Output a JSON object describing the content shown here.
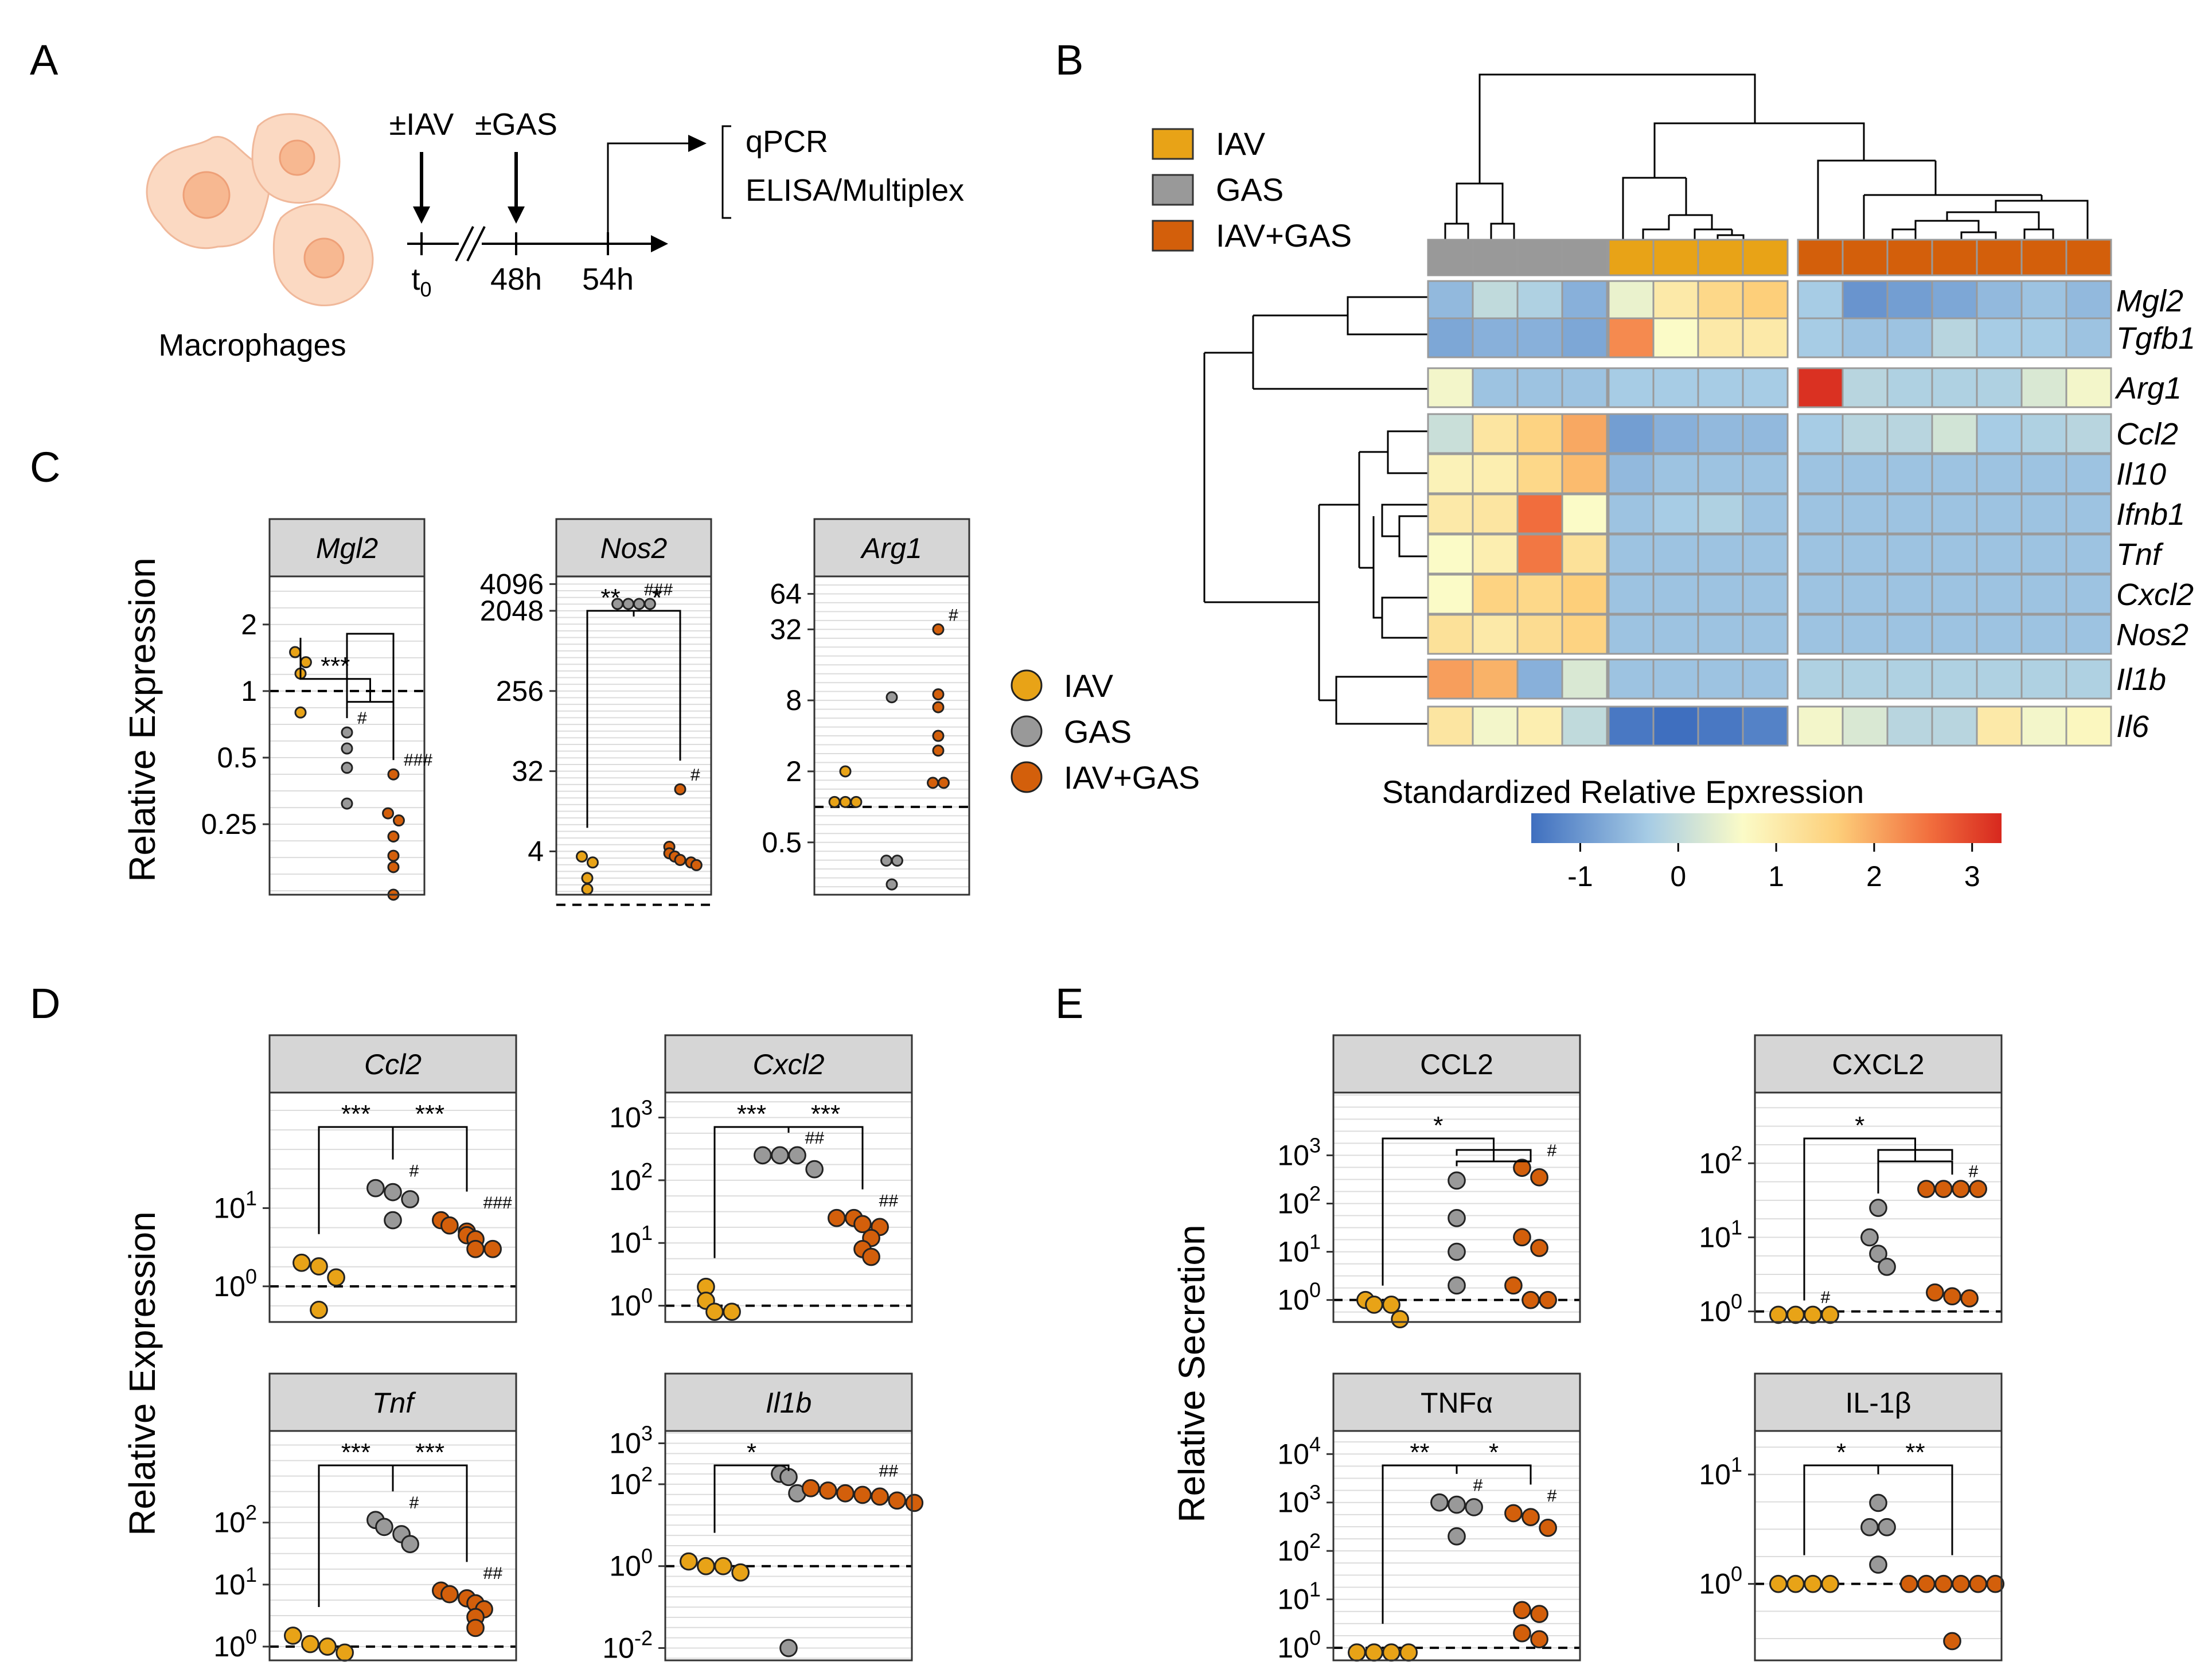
{
  "colors": {
    "IAV": "#E8A317",
    "GAS": "#999999",
    "IAV+GAS": "#D35F0B"
  },
  "legend": {
    "items": [
      "IAV",
      "GAS",
      "IAV+GAS"
    ]
  },
  "panel_A": {
    "label": "A",
    "cell_label": "Macrophages",
    "step1": "±IAV",
    "step2": "±GAS",
    "t0": "t",
    "t0_sub": "0",
    "t48": "48h",
    "t54": "54h",
    "readout1": "qPCR",
    "readout2": "ELISA/Multiplex"
  },
  "panel_B": {
    "label": "B",
    "colorbar_title": "Standardized Relative Epxression",
    "colorbar_ticks": [
      "-1",
      "0",
      "1",
      "2",
      "3"
    ],
    "genes": [
      "Mgl2",
      "Tgfb1",
      "Arg1",
      "Ccl2",
      "Il10",
      "Ifnb1",
      "Tnf",
      "Cxcl2",
      "Nos2",
      "Il1b",
      "Il6"
    ],
    "groups": [
      "GAS",
      "IAV",
      "IAV+GAS"
    ],
    "values": [
      [
        -0.7,
        -0.2,
        -0.4,
        -0.8,
        0.3,
        0.9,
        1.3,
        1.5,
        -0.5,
        -1.1,
        -1.0,
        -0.9,
        -0.7,
        -0.6,
        -0.7
      ],
      [
        -0.9,
        -0.8,
        -0.8,
        -0.9,
        2.2,
        0.5,
        0.9,
        0.9,
        -0.5,
        -0.6,
        -0.6,
        -0.3,
        -0.5,
        -0.5,
        -0.6
      ],
      [
        0.4,
        -0.6,
        -0.6,
        -0.6,
        -0.5,
        -0.5,
        -0.5,
        -0.5,
        3.2,
        -0.3,
        -0.4,
        -0.4,
        -0.4,
        0.1,
        0.4
      ],
      [
        -0.1,
        1.0,
        1.4,
        1.9,
        -1.0,
        -0.8,
        -0.7,
        -0.7,
        -0.5,
        -0.3,
        -0.3,
        0.0,
        -0.5,
        -0.4,
        -0.3
      ],
      [
        0.7,
        0.8,
        1.3,
        1.7,
        -0.7,
        -0.6,
        -0.6,
        -0.6,
        -0.6,
        -0.6,
        -0.6,
        -0.6,
        -0.6,
        -0.6,
        -0.6
      ],
      [
        0.9,
        1.0,
        2.5,
        0.5,
        -0.6,
        -0.5,
        -0.4,
        -0.6,
        -0.6,
        -0.6,
        -0.6,
        -0.6,
        -0.6,
        -0.6,
        -0.6
      ],
      [
        0.5,
        0.8,
        2.4,
        1.1,
        -0.6,
        -0.6,
        -0.6,
        -0.6,
        -0.6,
        -0.6,
        -0.6,
        -0.6,
        -0.6,
        -0.6,
        -0.6
      ],
      [
        0.5,
        1.4,
        1.3,
        1.5,
        -0.6,
        -0.6,
        -0.6,
        -0.6,
        -0.6,
        -0.6,
        -0.6,
        -0.6,
        -0.6,
        -0.6,
        -0.6
      ],
      [
        1.1,
        0.9,
        1.2,
        1.4,
        -0.6,
        -0.6,
        -0.6,
        -0.6,
        -0.6,
        -0.6,
        -0.6,
        -0.6,
        -0.6,
        -0.6,
        -0.6
      ],
      [
        2.0,
        1.8,
        -0.8,
        0.1,
        -0.6,
        -0.6,
        -0.6,
        -0.6,
        -0.4,
        -0.4,
        -0.4,
        -0.4,
        -0.4,
        -0.4,
        -0.4
      ],
      [
        1.0,
        0.4,
        0.8,
        -0.2,
        -1.4,
        -1.5,
        -1.4,
        -1.3,
        0.4,
        0.1,
        -0.3,
        -0.3,
        0.9,
        0.4,
        0.6
      ]
    ]
  },
  "panel_C": {
    "label": "C",
    "ylabel": "Relative Expression"
  },
  "panel_D": {
    "label": "D",
    "ylabel": "Relative Expression"
  },
  "panel_E": {
    "label": "E",
    "ylabel": "Relative Secretion"
  },
  "chart_data": [
    {
      "type": "scatter",
      "panel": "C",
      "title": "Mgl2",
      "italic": true,
      "scale": "log2",
      "ylim": [
        0.12,
        3.3
      ],
      "yticks": [
        0.25,
        0.5,
        1,
        2
      ],
      "ytick_labels": [
        "0.25",
        "0.5",
        "1",
        "2"
      ],
      "series": [
        {
          "name": "IAV",
          "values": [
            1.5,
            1.35,
            1.2,
            0.8
          ]
        },
        {
          "name": "GAS",
          "values": [
            0.65,
            0.55,
            0.45,
            0.31
          ]
        },
        {
          "name": "IAV+GAS",
          "values": [
            0.42,
            0.28,
            0.26,
            0.22,
            0.18,
            0.16,
            0.12
          ]
        }
      ],
      "brackets": [
        {
          "from": 0,
          "to": "1-2",
          "label": "***"
        },
        {
          "from": 1,
          "to": 2,
          "label": ""
        }
      ],
      "hashes": [
        {
          "group": 1,
          "label": "#"
        },
        {
          "group": 2,
          "label": "###"
        }
      ]
    },
    {
      "type": "scatter",
      "panel": "C",
      "title": "Nos2",
      "italic": true,
      "scale": "log2",
      "ylim": [
        1.3,
        5000
      ],
      "yticks": [
        4,
        32,
        256,
        2048,
        4096
      ],
      "ytick_labels": [
        "4",
        "32",
        "256",
        "2048",
        "4096"
      ],
      "series": [
        {
          "name": "IAV",
          "values": [
            3.5,
            3,
            2,
            1.5
          ]
        },
        {
          "name": "GAS",
          "values": [
            2450,
            2450,
            2450,
            2450
          ]
        },
        {
          "name": "IAV+GAS",
          "values": [
            20,
            4.5,
            3.8,
            3.5,
            3.2,
            3,
            2.8
          ]
        }
      ],
      "brackets": [
        {
          "from": 0,
          "to": 1,
          "label": "**"
        },
        {
          "from": 1,
          "to": 2,
          "label": "*"
        }
      ],
      "hashes": [
        {
          "group": 1,
          "label": "###"
        },
        {
          "group": 2,
          "label": "#"
        }
      ]
    },
    {
      "type": "scatter",
      "panel": "C",
      "title": "Arg1",
      "italic": true,
      "scale": "log2",
      "ylim": [
        0.18,
        90
      ],
      "yticks": [
        0.5,
        2,
        8,
        32,
        64
      ],
      "ytick_labels": [
        "0.5",
        "2",
        "8",
        "32",
        "64"
      ],
      "series": [
        {
          "name": "IAV",
          "values": [
            2,
            1.1,
            1.1,
            1.1
          ]
        },
        {
          "name": "GAS",
          "values": [
            8.5,
            0.35,
            0.35,
            0.22
          ]
        },
        {
          "name": "IAV+GAS",
          "values": [
            32,
            9,
            7,
            4,
            3,
            1.6,
            1.6
          ]
        }
      ],
      "brackets": [],
      "hashes": [
        {
          "group": 2,
          "label": "#"
        }
      ]
    },
    {
      "type": "scatter",
      "panel": "D",
      "title": "Ccl2",
      "italic": true,
      "scale": "log10",
      "ylim": [
        0.35,
        300
      ],
      "yticks": [
        1,
        10
      ],
      "ytick_labels": [
        "10^0",
        "10^1"
      ],
      "series": [
        {
          "name": "IAV",
          "values": [
            2,
            1.8,
            1.3,
            0.5
          ]
        },
        {
          "name": "GAS",
          "values": [
            18,
            16,
            13,
            7
          ]
        },
        {
          "name": "IAV+GAS",
          "values": [
            7,
            6,
            5,
            4.5,
            4,
            3,
            3
          ]
        }
      ],
      "brackets": [
        {
          "from": 0,
          "to": 1,
          "label": "***"
        },
        {
          "from": 1,
          "to": 2,
          "label": "***"
        }
      ],
      "hashes": [
        {
          "group": 1,
          "label": "#"
        },
        {
          "group": 2,
          "label": "###"
        }
      ]
    },
    {
      "type": "scatter",
      "panel": "D",
      "title": "Cxcl2",
      "italic": true,
      "scale": "log10",
      "ylim": [
        0.55,
        2500
      ],
      "yticks": [
        1,
        10,
        100,
        1000
      ],
      "ytick_labels": [
        "10^0",
        "10^1",
        "10^2",
        "10^3"
      ],
      "series": [
        {
          "name": "IAV",
          "values": [
            2,
            1.2,
            0.8,
            0.8
          ]
        },
        {
          "name": "GAS",
          "values": [
            250,
            250,
            250,
            150
          ]
        },
        {
          "name": "IAV+GAS",
          "values": [
            25,
            25,
            20,
            18,
            12,
            8,
            6
          ]
        }
      ],
      "brackets": [
        {
          "from": 0,
          "to": 1,
          "label": "***"
        },
        {
          "from": 1,
          "to": 2,
          "label": "***"
        }
      ],
      "hashes": [
        {
          "group": 1,
          "label": "##"
        },
        {
          "group": 2,
          "label": "##"
        }
      ]
    },
    {
      "type": "scatter",
      "panel": "D",
      "title": "Tnf",
      "italic": true,
      "scale": "log10",
      "ylim": [
        0.6,
        3000
      ],
      "yticks": [
        1,
        10,
        100
      ],
      "ytick_labels": [
        "10^0",
        "10^1",
        "10^2"
      ],
      "series": [
        {
          "name": "IAV",
          "values": [
            1.5,
            1.1,
            1,
            0.8
          ]
        },
        {
          "name": "GAS",
          "values": [
            110,
            85,
            65,
            45
          ]
        },
        {
          "name": "IAV+GAS",
          "values": [
            8,
            7,
            6,
            5,
            4,
            3,
            2
          ]
        }
      ],
      "brackets": [
        {
          "from": 0,
          "to": 1,
          "label": "***"
        },
        {
          "from": 1,
          "to": 2,
          "label": "***"
        }
      ],
      "hashes": [
        {
          "group": 1,
          "label": "#"
        },
        {
          "group": 2,
          "label": "##"
        }
      ]
    },
    {
      "type": "scatter",
      "panel": "D",
      "title": "Il1b",
      "italic": true,
      "scale": "log10",
      "ylim": [
        0.005,
        2000
      ],
      "yticks": [
        0.01,
        1,
        100,
        1000
      ],
      "ytick_labels": [
        "10^-2",
        "10^0",
        "10^2",
        "10^3"
      ],
      "series": [
        {
          "name": "IAV",
          "values": [
            1.3,
            1,
            1,
            0.7
          ]
        },
        {
          "name": "GAS",
          "values": [
            180,
            150,
            60,
            0.01
          ]
        },
        {
          "name": "IAV+GAS",
          "values": [
            80,
            70,
            60,
            55,
            50,
            40,
            35
          ]
        }
      ],
      "brackets": [
        {
          "from": 0,
          "to": 1,
          "label": "*"
        }
      ],
      "hashes": [
        {
          "group": 2,
          "label": "##"
        }
      ]
    },
    {
      "type": "scatter",
      "panel": "E",
      "title": "CCL2",
      "italic": false,
      "scale": "log10",
      "ylim": [
        0.35,
        20000
      ],
      "yticks": [
        1,
        10,
        100,
        1000
      ],
      "ytick_labels": [
        "10^0",
        "10^1",
        "10^2",
        "10^3"
      ],
      "series": [
        {
          "name": "IAV",
          "values": [
            1,
            0.8,
            0.8,
            0.4
          ]
        },
        {
          "name": "GAS",
          "values": [
            300,
            50,
            10,
            2
          ]
        },
        {
          "name": "IAV+GAS",
          "values": [
            550,
            350,
            20,
            12,
            2,
            1,
            1
          ]
        }
      ],
      "brackets": [
        {
          "from": 0,
          "to": "1-2",
          "label": "*"
        },
        {
          "from": 1,
          "to": 2,
          "label": ""
        }
      ],
      "hashes": [
        {
          "group": 2,
          "label": "#"
        }
      ]
    },
    {
      "type": "scatter",
      "panel": "E",
      "title": "CXCL2",
      "italic": false,
      "scale": "log10",
      "ylim": [
        0.72,
        900
      ],
      "yticks": [
        1,
        10,
        100
      ],
      "ytick_labels": [
        "10^0",
        "10^1",
        "10^2"
      ],
      "series": [
        {
          "name": "IAV",
          "values": [
            0.9,
            0.9,
            0.9,
            0.9
          ]
        },
        {
          "name": "GAS",
          "values": [
            25,
            10,
            6,
            4
          ]
        },
        {
          "name": "IAV+GAS",
          "values": [
            45,
            45,
            45,
            45,
            1.8,
            1.6,
            1.5
          ]
        }
      ],
      "brackets": [
        {
          "from": 0,
          "to": "1-2",
          "label": "*"
        },
        {
          "from": 1,
          "to": 2,
          "label": ""
        }
      ],
      "hashes": [
        {
          "group": 0,
          "label": "#"
        },
        {
          "group": 2,
          "label": "#"
        }
      ]
    },
    {
      "type": "scatter",
      "panel": "E",
      "title": "TNFα",
      "italic": false,
      "scale": "log10",
      "ylim": [
        0.55,
        30000
      ],
      "yticks": [
        1,
        10,
        100,
        1000,
        10000
      ],
      "ytick_labels": [
        "10^0",
        "10^1",
        "10^2",
        "10^3",
        "10^4"
      ],
      "series": [
        {
          "name": "IAV",
          "values": [
            0.8,
            0.8,
            0.8,
            0.8
          ]
        },
        {
          "name": "GAS",
          "values": [
            1000,
            900,
            800,
            200
          ]
        },
        {
          "name": "IAV+GAS",
          "values": [
            600,
            500,
            300,
            6,
            5,
            2,
            1.5
          ]
        }
      ],
      "brackets": [
        {
          "from": 0,
          "to": 1,
          "label": "**"
        },
        {
          "from": 1,
          "to": 2,
          "label": "*"
        }
      ],
      "hashes": [
        {
          "group": 1,
          "label": "#"
        },
        {
          "group": 2,
          "label": "#"
        }
      ]
    },
    {
      "type": "scatter",
      "panel": "E",
      "title": "IL-1β",
      "italic": false,
      "scale": "log10",
      "ylim": [
        0.2,
        25
      ],
      "yticks": [
        1,
        10
      ],
      "ytick_labels": [
        "10^0",
        "10^1"
      ],
      "series": [
        {
          "name": "IAV",
          "values": [
            1,
            1,
            1,
            1
          ]
        },
        {
          "name": "GAS",
          "values": [
            5.5,
            3.3,
            3.3,
            1.5
          ]
        },
        {
          "name": "IAV+GAS",
          "values": [
            1,
            1,
            1,
            1,
            1,
            1,
            0.3
          ]
        }
      ],
      "brackets": [
        {
          "from": 0,
          "to": 1,
          "label": "*"
        },
        {
          "from": 1,
          "to": 2,
          "label": "**"
        }
      ],
      "hashes": []
    }
  ]
}
